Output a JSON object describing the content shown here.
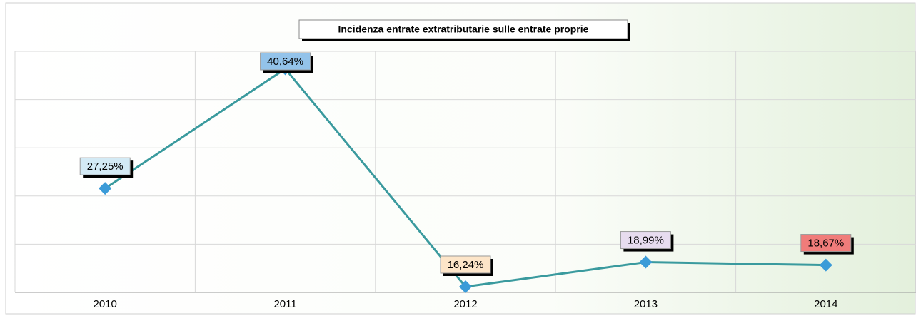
{
  "chart_data": {
    "type": "line",
    "title": "Incidenza entrate extratributarie sulle entrate proprie",
    "categories": [
      "2010",
      "2011",
      "2012",
      "2013",
      "2014"
    ],
    "series": [
      {
        "color": "#3a9a9e",
        "marker_color": "#3b9bd8",
        "values": [
          27.25,
          40.64,
          16.24,
          18.99,
          18.67
        ],
        "value_labels": [
          "27,25%",
          "40,64%",
          "16,24%",
          "18,99%",
          "18,67%"
        ],
        "label_colors": [
          "#d3eaf5",
          "#93c3ea",
          "#fde5c8",
          "#e7dcef",
          "#f07c7a"
        ]
      }
    ],
    "ylim": [
      15.6,
      42.6
    ],
    "yticks": [
      15.6,
      21,
      26.4,
      31.8,
      37.2,
      42.6
    ],
    "grid": true
  }
}
